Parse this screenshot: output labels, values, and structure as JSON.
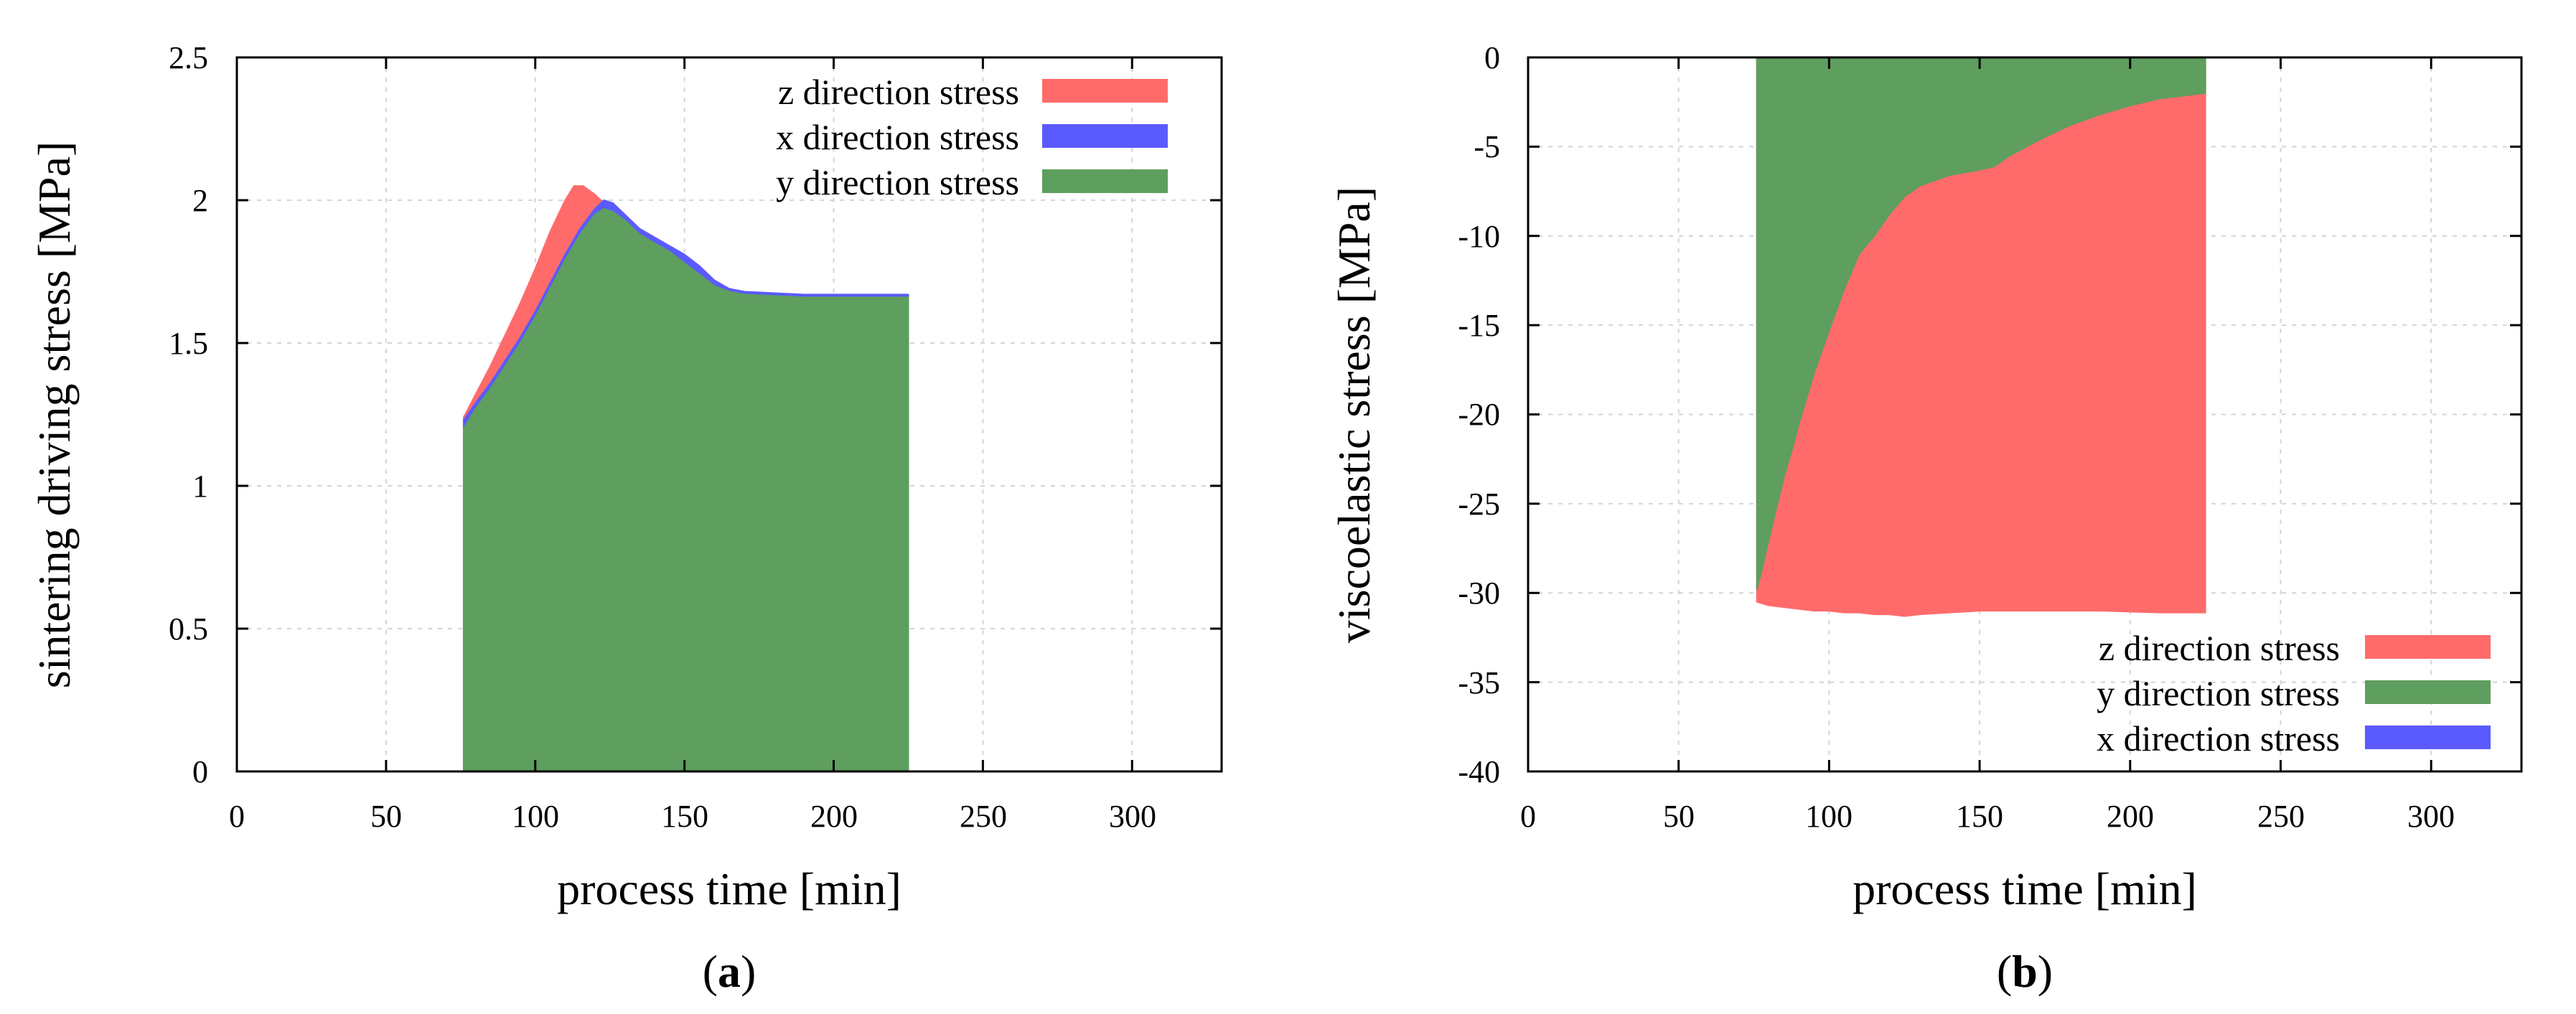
{
  "chart_data": [
    {
      "id": "a",
      "type": "area",
      "caption_letter": "a",
      "xlabel": "process time [min]",
      "ylabel": "sintering driving stress [MPa]",
      "xlim": [
        0,
        330
      ],
      "ylim": [
        0,
        2.5
      ],
      "xticks": [
        0,
        50,
        100,
        150,
        200,
        250,
        300
      ],
      "yticks": [
        0,
        0.5,
        1,
        1.5,
        2,
        2.5
      ],
      "ytick_labels": [
        "0",
        "0.5",
        "1",
        "1.5",
        "2",
        "2.5"
      ],
      "x_range": [
        76,
        225
      ],
      "baseline": 0,
      "legend": {
        "position": "top-right",
        "entries": [
          {
            "label": "z direction stress",
            "color": "#ff6b6b"
          },
          {
            "label": "x direction stress",
            "color": "#5a5aff"
          },
          {
            "label": "y direction stress",
            "color": "#5e9e5e"
          }
        ]
      },
      "draw_order": [
        "z direction stress",
        "x direction stress",
        "y direction stress"
      ],
      "series": [
        {
          "name": "z direction stress",
          "color": "#ff6b6b",
          "points": [
            [
              76,
              1.24
            ],
            [
              80,
              1.32
            ],
            [
              85,
              1.42
            ],
            [
              90,
              1.53
            ],
            [
              95,
              1.64
            ],
            [
              100,
              1.76
            ],
            [
              105,
              1.89
            ],
            [
              110,
              2.0
            ],
            [
              113,
              2.05
            ],
            [
              116,
              2.05
            ],
            [
              120,
              2.02
            ],
            [
              125,
              1.97
            ],
            [
              130,
              1.93
            ],
            [
              135,
              1.9
            ],
            [
              140,
              1.86
            ],
            [
              145,
              1.83
            ],
            [
              150,
              1.79
            ],
            [
              155,
              1.75
            ],
            [
              160,
              1.71
            ],
            [
              165,
              1.69
            ],
            [
              170,
              1.68
            ],
            [
              180,
              1.67
            ],
            [
              190,
              1.665
            ],
            [
              200,
              1.665
            ],
            [
              210,
              1.665
            ],
            [
              225,
              1.665
            ]
          ]
        },
        {
          "name": "x direction stress",
          "color": "#5a5aff",
          "points": [
            [
              76,
              1.23
            ],
            [
              80,
              1.29
            ],
            [
              85,
              1.36
            ],
            [
              90,
              1.44
            ],
            [
              95,
              1.52
            ],
            [
              100,
              1.61
            ],
            [
              105,
              1.71
            ],
            [
              110,
              1.81
            ],
            [
              115,
              1.9
            ],
            [
              120,
              1.97
            ],
            [
              123,
              2.0
            ],
            [
              126,
              1.99
            ],
            [
              130,
              1.95
            ],
            [
              135,
              1.9
            ],
            [
              140,
              1.87
            ],
            [
              145,
              1.84
            ],
            [
              150,
              1.81
            ],
            [
              155,
              1.77
            ],
            [
              160,
              1.72
            ],
            [
              165,
              1.69
            ],
            [
              170,
              1.68
            ],
            [
              180,
              1.675
            ],
            [
              190,
              1.67
            ],
            [
              200,
              1.67
            ],
            [
              210,
              1.67
            ],
            [
              225,
              1.67
            ]
          ]
        },
        {
          "name": "y direction stress",
          "color": "#5e9e5e",
          "points": [
            [
              76,
              1.2
            ],
            [
              80,
              1.27
            ],
            [
              85,
              1.34
            ],
            [
              90,
              1.42
            ],
            [
              95,
              1.5
            ],
            [
              100,
              1.59
            ],
            [
              105,
              1.69
            ],
            [
              110,
              1.79
            ],
            [
              115,
              1.88
            ],
            [
              120,
              1.95
            ],
            [
              123,
              1.97
            ],
            [
              126,
              1.96
            ],
            [
              130,
              1.93
            ],
            [
              135,
              1.88
            ],
            [
              140,
              1.85
            ],
            [
              145,
              1.82
            ],
            [
              150,
              1.78
            ],
            [
              155,
              1.74
            ],
            [
              160,
              1.7
            ],
            [
              165,
              1.68
            ],
            [
              170,
              1.67
            ],
            [
              180,
              1.665
            ],
            [
              190,
              1.66
            ],
            [
              200,
              1.66
            ],
            [
              210,
              1.66
            ],
            [
              225,
              1.66
            ]
          ]
        }
      ]
    },
    {
      "id": "b",
      "type": "area",
      "caption_letter": "b",
      "xlabel": "process time [min]",
      "ylabel": "viscoelastic stress [MPa]",
      "xlim": [
        0,
        330
      ],
      "ylim": [
        -40,
        0
      ],
      "xticks": [
        0,
        50,
        100,
        150,
        200,
        250,
        300
      ],
      "yticks": [
        -40,
        -35,
        -30,
        -25,
        -20,
        -15,
        -10,
        -5,
        0
      ],
      "ytick_labels": [
        "-40",
        "-35",
        "-30",
        "-25",
        "-20",
        "-15",
        "-10",
        "-5",
        "0"
      ],
      "x_range": [
        76,
        225
      ],
      "baseline": 0,
      "legend": {
        "position": "bottom-right",
        "entries": [
          {
            "label": "z direction stress",
            "color": "#ff6b6b"
          },
          {
            "label": "y direction stress",
            "color": "#5e9e5e"
          },
          {
            "label": "x direction stress",
            "color": "#5a5aff"
          }
        ]
      },
      "draw_order": [
        "z direction stress",
        "y direction stress",
        "x direction stress"
      ],
      "series": [
        {
          "name": "z direction stress",
          "color": "#ff6b6b",
          "points": [
            [
              76,
              -30.5
            ],
            [
              80,
              -30.7
            ],
            [
              85,
              -30.8
            ],
            [
              90,
              -30.9
            ],
            [
              95,
              -31.0
            ],
            [
              100,
              -31.0
            ],
            [
              105,
              -31.1
            ],
            [
              110,
              -31.1
            ],
            [
              115,
              -31.2
            ],
            [
              120,
              -31.2
            ],
            [
              125,
              -31.3
            ],
            [
              130,
              -31.2
            ],
            [
              140,
              -31.1
            ],
            [
              150,
              -31.0
            ],
            [
              160,
              -31.0
            ],
            [
              170,
              -31.0
            ],
            [
              180,
              -31.0
            ],
            [
              190,
              -31.0
            ],
            [
              200,
              -31.05
            ],
            [
              210,
              -31.1
            ],
            [
              220,
              -31.1
            ],
            [
              225,
              -31.1
            ]
          ]
        },
        {
          "name": "y direction stress",
          "color": "#5e9e5e",
          "points": [
            [
              76,
              -29.8
            ],
            [
              78,
              -28.5
            ],
            [
              80,
              -27.0
            ],
            [
              82,
              -25.6
            ],
            [
              85,
              -23.5
            ],
            [
              88,
              -21.8
            ],
            [
              90,
              -20.5
            ],
            [
              95,
              -17.7
            ],
            [
              100,
              -15.3
            ],
            [
              105,
              -13.0
            ],
            [
              110,
              -11.0
            ],
            [
              115,
              -10.0
            ],
            [
              120,
              -8.8
            ],
            [
              125,
              -7.8
            ],
            [
              130,
              -7.2
            ],
            [
              140,
              -6.6
            ],
            [
              150,
              -6.3
            ],
            [
              155,
              -6.1
            ],
            [
              160,
              -5.5
            ],
            [
              170,
              -4.6
            ],
            [
              180,
              -3.8
            ],
            [
              190,
              -3.2
            ],
            [
              200,
              -2.7
            ],
            [
              210,
              -2.3
            ],
            [
              225,
              -2.0
            ]
          ]
        },
        {
          "name": "x direction stress",
          "color": "#5a5aff",
          "points": [
            [
              76,
              0
            ],
            [
              100,
              0
            ],
            [
              125,
              0
            ],
            [
              150,
              0
            ],
            [
              175,
              0
            ],
            [
              200,
              0
            ],
            [
              225,
              0
            ]
          ]
        }
      ]
    }
  ]
}
